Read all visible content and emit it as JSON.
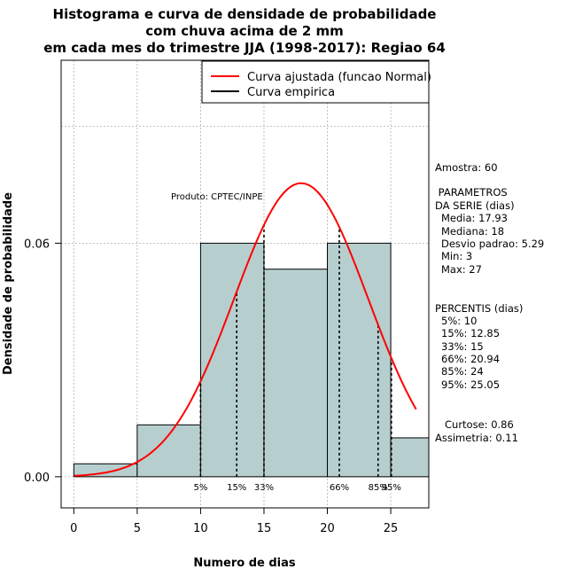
{
  "chart_data": {
    "type": "bar",
    "title_lines": [
      "Histograma e curva de densidade de probabilidade",
      "com chuva acima de 2 mm",
      "em cada mes do trimestre JJA (1998-2017): Regiao 64"
    ],
    "xlabel": "Numero de dias",
    "ylabel": "Densidade de probabilidade",
    "xlim": [
      -1,
      28
    ],
    "ylim": [
      -0.008,
      0.107
    ],
    "x_ticks": [
      "0",
      "5",
      "10",
      "15",
      "20",
      "25"
    ],
    "y_ticks": [
      "0.00",
      "0.06"
    ],
    "grid": true,
    "bins": [
      {
        "from": 0,
        "to": 5,
        "density": 0.00333
      },
      {
        "from": 5,
        "to": 10,
        "density": 0.01333
      },
      {
        "from": 10,
        "to": 15,
        "density": 0.06
      },
      {
        "from": 15,
        "to": 20,
        "density": 0.05333
      },
      {
        "from": 20,
        "to": 25,
        "density": 0.06
      },
      {
        "from": 25,
        "to": 28,
        "density": 0.01
      }
    ],
    "fitted_curve": {
      "distribution": "normal",
      "mean": 17.93,
      "sd": 5.29,
      "x_from": 0,
      "x_to": 27
    },
    "percentile_markers": [
      {
        "label": "5%",
        "x": 10
      },
      {
        "label": "15%",
        "x": 12.85
      },
      {
        "label": "33%",
        "x": 15
      },
      {
        "label": "66%",
        "x": 20.94
      },
      {
        "label": "85%",
        "x": 24
      },
      {
        "label": "95%",
        "x": 25.05
      }
    ],
    "legend": {
      "position": "top-right",
      "entries": [
        {
          "label": "Curva ajustada (funcao Normal)",
          "color": "#ff0000"
        },
        {
          "label": "Curva empirica",
          "color": "#000000"
        }
      ]
    },
    "annotation": "Produto: CPTEC/INPE",
    "colors": {
      "bar_fill": "#b6cece",
      "curve": "#ff0000",
      "grid": "#b0b0b0"
    }
  },
  "side_panel": {
    "sample": "Amostra: 60",
    "params_title": [
      " PARAMETROS",
      "DA SERIE (dias)"
    ],
    "params": [
      "Media: 17.93",
      "Mediana: 18",
      "Desvio padrao: 5.29",
      "Min: 3",
      "Max: 27"
    ],
    "percentiles_title": "PERCENTIS (dias)",
    "percentiles": [
      "5%: 10",
      "15%: 12.85",
      "33%: 15",
      "66%: 20.94",
      "85%: 24",
      "95%: 25.05"
    ],
    "kurtosis": "Curtose: 0.86",
    "skewness": "Assimetria: 0.11"
  }
}
